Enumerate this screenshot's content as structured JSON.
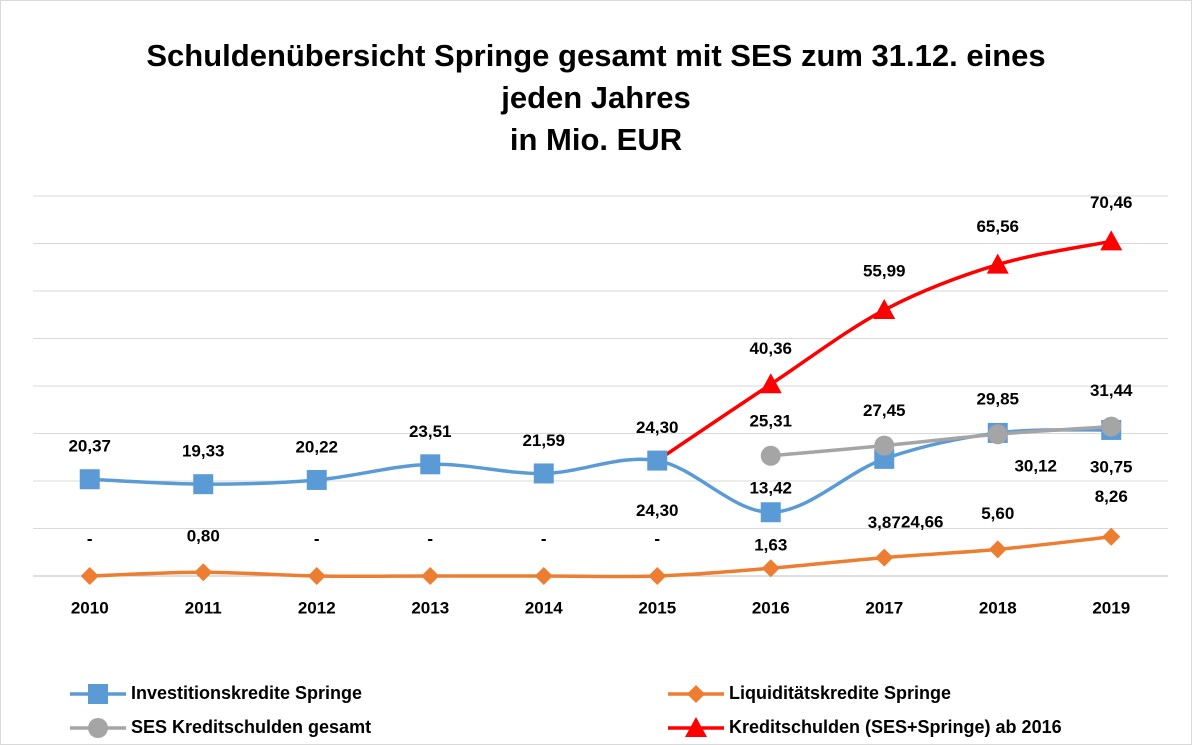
{
  "chart_data": {
    "type": "line",
    "title": [
      "Schuldenübersicht Springe gesamt mit SES zum 31.12. eines",
      "jeden Jahres",
      "in Mio. EUR"
    ],
    "categories": [
      "2010",
      "2011",
      "2012",
      "2013",
      "2014",
      "2015",
      "2016",
      "2017",
      "2018",
      "2019"
    ],
    "ylim": [
      0,
      80
    ],
    "yticks": [
      0,
      10,
      20,
      30,
      40,
      50,
      60,
      70,
      80
    ],
    "grid": true,
    "legend": "bottom",
    "series": [
      {
        "name": "Investitionskredite Springe",
        "color": "#5b9bd5",
        "marker": "square",
        "values": [
          20.37,
          19.33,
          20.22,
          23.51,
          21.59,
          24.3,
          13.42,
          24.66,
          30.12,
          30.75
        ],
        "value_labels": [
          "20,37",
          "19,33",
          "20,22",
          "23,51",
          "21,59",
          "24,30",
          "13,42",
          "24,66",
          "30,12",
          "30,75"
        ]
      },
      {
        "name": "Liquiditätskredite Springe",
        "color": "#ed7d31",
        "marker": "diamond",
        "values": [
          0,
          0.8,
          0,
          0,
          0,
          0,
          1.63,
          3.87,
          5.6,
          8.26
        ],
        "value_labels": [
          "-",
          "0,80",
          "-",
          "-",
          "-",
          "-",
          "1,63",
          "3,87",
          "5,60",
          "8,26"
        ]
      },
      {
        "name": "SES Kreditschulden gesamt",
        "color": "#a5a5a5",
        "marker": "circle",
        "values": [
          null,
          null,
          null,
          null,
          null,
          null,
          25.31,
          27.45,
          29.85,
          31.44
        ],
        "value_labels": [
          null,
          null,
          null,
          null,
          null,
          null,
          "25,31",
          "27,45",
          "29,85",
          "31,44"
        ]
      },
      {
        "name": "Kreditschulden (SES+Springe) ab 2016",
        "color": "#ff0000",
        "marker": "triangle",
        "values": [
          null,
          null,
          null,
          null,
          null,
          24.3,
          40.36,
          55.99,
          65.56,
          70.46
        ],
        "value_labels": [
          null,
          null,
          null,
          null,
          null,
          "24,30",
          "40,36",
          "55,99",
          "65,56",
          "70,46"
        ]
      }
    ]
  }
}
